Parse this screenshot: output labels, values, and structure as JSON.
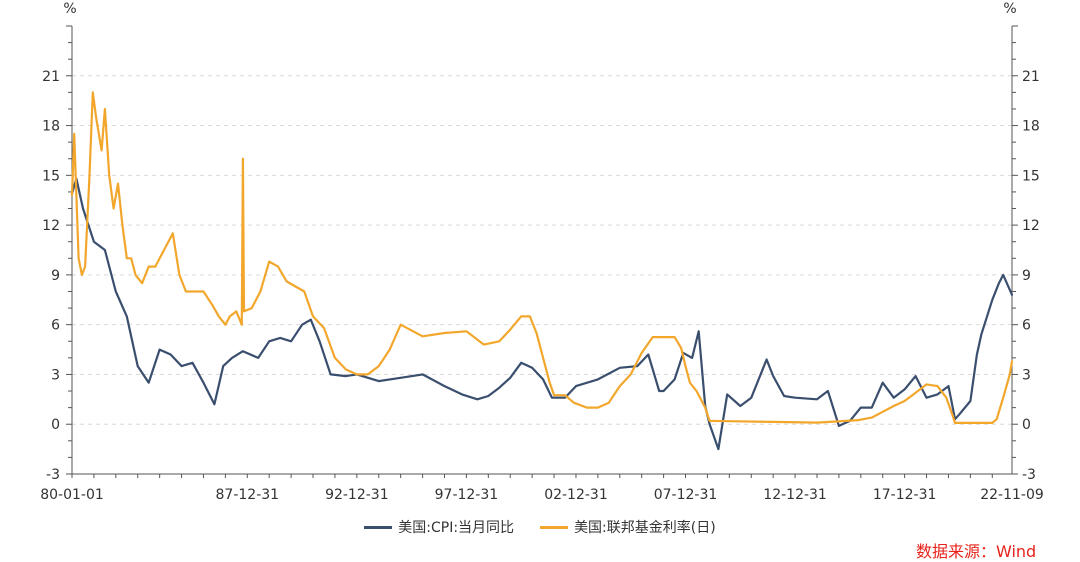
{
  "chart_data": {
    "type": "line",
    "x_start": "80-01-01",
    "x_end": "22-11-09",
    "x_tick_labels": [
      "80-01-01",
      "87-12-31",
      "92-12-31",
      "97-12-31",
      "02-12-31",
      "07-12-31",
      "12-12-31",
      "17-12-31",
      "22-11-09"
    ],
    "left_axis": {
      "unit": "%",
      "ticks": [
        "-3",
        "0",
        "3",
        "6",
        "9",
        "12",
        "15",
        "18",
        "21"
      ],
      "ylim": [
        -3,
        24
      ]
    },
    "right_axis": {
      "unit": "%",
      "ticks": [
        "-3",
        "0",
        "3",
        "6",
        "9",
        "12",
        "15",
        "18",
        "21"
      ],
      "ylim": [
        -3,
        24
      ]
    },
    "grid": "horizontal-dashed",
    "legend_position": "bottom",
    "series": [
      {
        "name": "美国:CPI:当月同比",
        "color": "#3a4f6e",
        "x": [
          1980.0,
          1980.2,
          1980.5,
          1981.0,
          1981.5,
          1982.0,
          1982.5,
          1983.0,
          1983.5,
          1984.0,
          1984.5,
          1985.0,
          1985.5,
          1986.0,
          1986.5,
          1986.9,
          1987.3,
          1987.8,
          1988.5,
          1989.0,
          1989.5,
          1990.0,
          1990.5,
          1990.9,
          1991.3,
          1991.8,
          1992.5,
          1993.0,
          1994.0,
          1995.0,
          1996.0,
          1997.0,
          1997.8,
          1998.5,
          1999.0,
          1999.5,
          2000.0,
          2000.5,
          2001.0,
          2001.5,
          2001.9,
          2002.5,
          2003.0,
          2004.0,
          2005.0,
          2005.8,
          2006.3,
          2006.8,
          2007.0,
          2007.5,
          2007.9,
          2008.3,
          2008.6,
          2008.9,
          2009.1,
          2009.5,
          2009.9,
          2010.5,
          2011.0,
          2011.7,
          2012.0,
          2012.5,
          2013.0,
          2014.0,
          2014.5,
          2015.0,
          2015.5,
          2016.0,
          2016.5,
          2017.0,
          2017.5,
          2018.0,
          2018.5,
          2019.0,
          2019.5,
          2020.0,
          2020.3,
          2020.5,
          2021.0,
          2021.3,
          2021.5,
          2022.0,
          2022.3,
          2022.5,
          2022.9
        ],
        "y": [
          13.9,
          14.8,
          13.0,
          11.0,
          10.5,
          8.0,
          6.5,
          3.5,
          2.5,
          4.5,
          4.2,
          3.5,
          3.7,
          2.5,
          1.2,
          3.5,
          4.0,
          4.4,
          4.0,
          5.0,
          5.2,
          5.0,
          6.0,
          6.3,
          5.0,
          3.0,
          2.9,
          3.0,
          2.6,
          2.8,
          3.0,
          2.3,
          1.8,
          1.5,
          1.7,
          2.2,
          2.8,
          3.7,
          3.4,
          2.7,
          1.6,
          1.6,
          2.3,
          2.7,
          3.4,
          3.5,
          4.2,
          2.0,
          2.0,
          2.7,
          4.3,
          4.0,
          5.6,
          1.1,
          0.0,
          -1.5,
          1.8,
          1.1,
          1.6,
          3.9,
          2.9,
          1.7,
          1.6,
          1.5,
          2.0,
          -0.1,
          0.2,
          1.0,
          1.0,
          2.5,
          1.6,
          2.1,
          2.9,
          1.6,
          1.8,
          2.3,
          0.3,
          0.6,
          1.4,
          4.2,
          5.4,
          7.5,
          8.5,
          9.0,
          7.8
        ]
      },
      {
        "name": "美国:联邦基金利率(日)",
        "color": "#f2a72c",
        "x": [
          1980.0,
          1980.1,
          1980.3,
          1980.45,
          1980.6,
          1980.8,
          1980.95,
          1981.1,
          1981.35,
          1981.5,
          1981.7,
          1981.9,
          1982.1,
          1982.3,
          1982.5,
          1982.7,
          1982.9,
          1983.2,
          1983.5,
          1983.8,
          1984.2,
          1984.6,
          1984.9,
          1985.2,
          1985.6,
          1986.0,
          1986.4,
          1986.7,
          1987.0,
          1987.2,
          1987.5,
          1987.75,
          1987.8,
          1987.85,
          1988.2,
          1988.6,
          1989.0,
          1989.4,
          1989.8,
          1990.2,
          1990.6,
          1991.0,
          1991.5,
          1992.0,
          1992.5,
          1993.0,
          1993.5,
          1994.0,
          1994.5,
          1995.0,
          1996.0,
          1997.0,
          1998.0,
          1998.8,
          1999.5,
          2000.0,
          2000.5,
          2000.9,
          2001.2,
          2001.5,
          2001.8,
          2002.0,
          2002.5,
          2002.9,
          2003.5,
          2004.0,
          2004.5,
          2005.0,
          2005.5,
          2006.0,
          2006.5,
          2007.0,
          2007.5,
          2007.8,
          2008.0,
          2008.2,
          2008.5,
          2008.9,
          2009.1,
          2010.0,
          2012.0,
          2014.0,
          2015.9,
          2016.5,
          2017.0,
          2017.5,
          2018.0,
          2018.5,
          2019.0,
          2019.5,
          2019.9,
          2020.2,
          2020.3,
          2021.0,
          2022.0,
          2022.2,
          2022.5,
          2022.8,
          2022.9
        ],
        "y": [
          13.8,
          17.5,
          10.0,
          9.0,
          9.5,
          15.0,
          20.0,
          18.5,
          16.5,
          19.0,
          15.0,
          13.0,
          14.5,
          12.0,
          10.0,
          10.0,
          9.0,
          8.5,
          9.5,
          9.5,
          10.5,
          11.5,
          9.0,
          8.0,
          8.0,
          8.0,
          7.2,
          6.5,
          6.0,
          6.5,
          6.8,
          6.0,
          16.0,
          6.8,
          7.0,
          8.0,
          9.8,
          9.5,
          8.6,
          8.3,
          8.0,
          6.5,
          5.8,
          4.0,
          3.3,
          3.0,
          3.0,
          3.5,
          4.5,
          6.0,
          5.3,
          5.5,
          5.6,
          4.8,
          5.0,
          5.7,
          6.5,
          6.5,
          5.5,
          4.0,
          2.5,
          1.75,
          1.75,
          1.3,
          1.0,
          1.0,
          1.3,
          2.3,
          3.0,
          4.3,
          5.25,
          5.25,
          5.25,
          4.6,
          3.5,
          2.5,
          2.0,
          1.0,
          0.2,
          0.18,
          0.14,
          0.1,
          0.25,
          0.4,
          0.75,
          1.1,
          1.4,
          1.9,
          2.4,
          2.3,
          1.6,
          0.5,
          0.08,
          0.08,
          0.08,
          0.3,
          1.6,
          3.0,
          3.8
        ]
      }
    ]
  },
  "footer": {
    "source": "数据来源：Wind"
  }
}
